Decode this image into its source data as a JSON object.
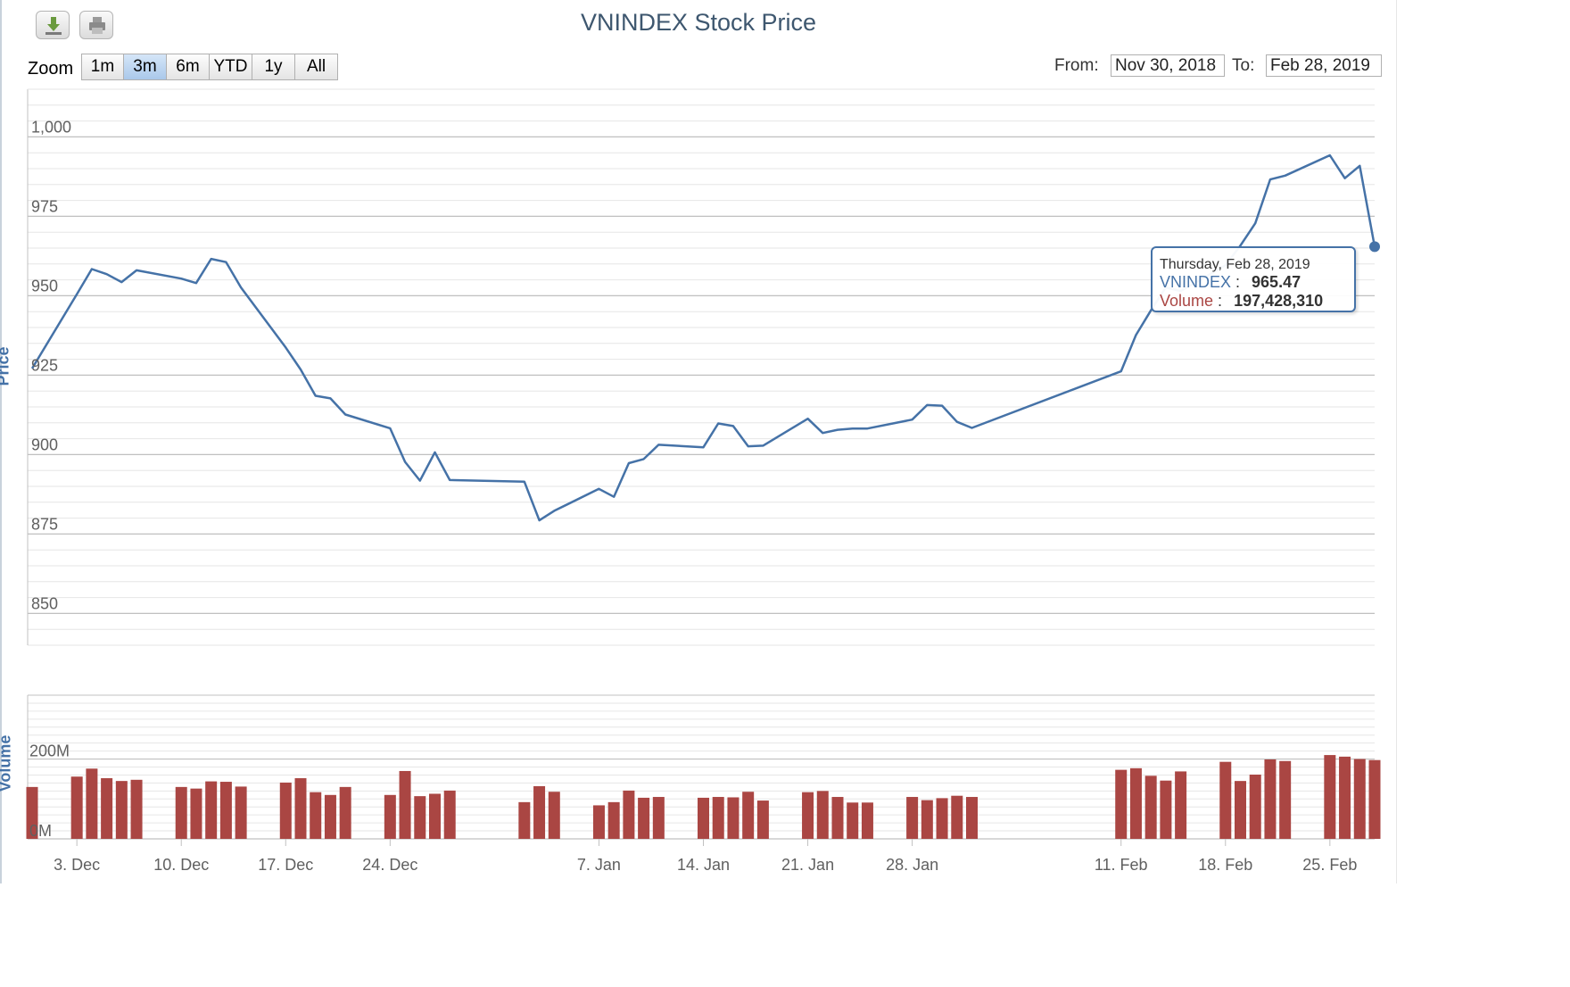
{
  "title": "VNINDEX Stock Price",
  "toolbar": {
    "download_icon": "download-icon",
    "print_icon": "print-icon"
  },
  "zoom": {
    "label": "Zoom",
    "buttons": [
      "1m",
      "3m",
      "6m",
      "YTD",
      "1y",
      "All"
    ],
    "selected": "3m"
  },
  "range": {
    "from_label": "From:",
    "from_value": "Nov 30, 2018",
    "to_label": "To:",
    "to_value": "Feb 28, 2019"
  },
  "colors": {
    "price_line": "#4572a7",
    "volume_bar": "#aa4643",
    "title": "#3e576f",
    "grid": "#c0c0c0"
  },
  "tooltip": {
    "date": "Thursday, Feb 28, 2019",
    "series1_name": "VNINDEX",
    "series1_value": "965.47",
    "series2_name": "Volume",
    "series2_value": "197,428,310"
  },
  "chart_data": [
    {
      "type": "line",
      "title": "VNINDEX Stock Price",
      "ylabel": "Price",
      "ylim": [
        840,
        1015
      ],
      "yticks": [
        850,
        875,
        900,
        925,
        950,
        975,
        1000
      ],
      "ytick_labels": [
        "850",
        "875",
        "900",
        "925",
        "950",
        "975",
        "1,000"
      ],
      "xlim": [
        "2018-11-30",
        "2019-02-28"
      ],
      "xticks": [
        "2018-12-03",
        "2018-12-10",
        "2018-12-17",
        "2018-12-24",
        "2019-01-07",
        "2019-01-14",
        "2019-01-21",
        "2019-01-28",
        "2019-02-11",
        "2019-02-18",
        "2019-02-25"
      ],
      "xtick_labels": [
        "3. Dec",
        "10. Dec",
        "17. Dec",
        "24. Dec",
        "7. Jan",
        "14. Jan",
        "21. Jan",
        "28. Jan",
        "11. Feb",
        "18. Feb",
        "25. Feb"
      ],
      "grid": true,
      "series": [
        {
          "name": "VNINDEX",
          "x": [
            "2018-11-30",
            "2018-12-03",
            "2018-12-04",
            "2018-12-05",
            "2018-12-06",
            "2018-12-07",
            "2018-12-10",
            "2018-12-11",
            "2018-12-12",
            "2018-12-13",
            "2018-12-14",
            "2018-12-17",
            "2018-12-18",
            "2018-12-19",
            "2018-12-20",
            "2018-12-21",
            "2018-12-24",
            "2018-12-25",
            "2018-12-26",
            "2018-12-27",
            "2018-12-28",
            "2019-01-02",
            "2019-01-03",
            "2019-01-04",
            "2019-01-07",
            "2019-01-08",
            "2019-01-09",
            "2019-01-10",
            "2019-01-11",
            "2019-01-14",
            "2019-01-15",
            "2019-01-16",
            "2019-01-17",
            "2019-01-18",
            "2019-01-21",
            "2019-01-22",
            "2019-01-23",
            "2019-01-24",
            "2019-01-25",
            "2019-01-28",
            "2019-01-29",
            "2019-01-30",
            "2019-01-31",
            "2019-02-01",
            "2019-02-11",
            "2019-02-12",
            "2019-02-13",
            "2019-02-14",
            "2019-02-15",
            "2019-02-18",
            "2019-02-19",
            "2019-02-20",
            "2019-02-21",
            "2019-02-22",
            "2019-02-25",
            "2019-02-26",
            "2019-02-27",
            "2019-02-28"
          ],
          "values": [
            927.1,
            950.5,
            958.4,
            956.8,
            954.3,
            958.0,
            955.4,
            954.0,
            961.6,
            960.6,
            952.6,
            933.7,
            926.8,
            918.5,
            917.7,
            912.6,
            908.3,
            897.7,
            891.8,
            900.7,
            892.0,
            891.5,
            879.3,
            882.3,
            889.2,
            886.7,
            897.3,
            898.6,
            903.1,
            902.3,
            909.8,
            909.0,
            902.6,
            902.8,
            911.3,
            906.8,
            907.8,
            908.2,
            908.2,
            911.0,
            915.6,
            915.4,
            910.3,
            908.4,
            926.2,
            937.6,
            945.4,
            952.6,
            951.5,
            959.6,
            965.8,
            972.8,
            986.6,
            987.8,
            994.2,
            987.0,
            990.9,
            965.47
          ]
        }
      ]
    },
    {
      "type": "bar",
      "ylabel": "Volume",
      "ylim": [
        0,
        360000000
      ],
      "yticks": [
        0,
        200000000
      ],
      "ytick_labels": [
        "0M",
        "200M"
      ],
      "series": [
        {
          "name": "Volume",
          "x": [
            "2018-11-30",
            "2018-12-03",
            "2018-12-04",
            "2018-12-05",
            "2018-12-06",
            "2018-12-07",
            "2018-12-10",
            "2018-12-11",
            "2018-12-12",
            "2018-12-13",
            "2018-12-14",
            "2018-12-17",
            "2018-12-18",
            "2018-12-19",
            "2018-12-20",
            "2018-12-21",
            "2018-12-24",
            "2018-12-25",
            "2018-12-26",
            "2018-12-27",
            "2018-12-28",
            "2019-01-02",
            "2019-01-03",
            "2019-01-04",
            "2019-01-07",
            "2019-01-08",
            "2019-01-09",
            "2019-01-10",
            "2019-01-11",
            "2019-01-14",
            "2019-01-15",
            "2019-01-16",
            "2019-01-17",
            "2019-01-18",
            "2019-01-21",
            "2019-01-22",
            "2019-01-23",
            "2019-01-24",
            "2019-01-25",
            "2019-01-28",
            "2019-01-29",
            "2019-01-30",
            "2019-01-31",
            "2019-02-01",
            "2019-02-11",
            "2019-02-12",
            "2019-02-13",
            "2019-02-14",
            "2019-02-15",
            "2019-02-18",
            "2019-02-19",
            "2019-02-20",
            "2019-02-21",
            "2019-02-22",
            "2019-02-25",
            "2019-02-26",
            "2019-02-27",
            "2019-02-28"
          ],
          "values": [
            130000000,
            156000000,
            176000000,
            152000000,
            145000000,
            148000000,
            130000000,
            126000000,
            144000000,
            143000000,
            131000000,
            141000000,
            152000000,
            117000000,
            110000000,
            130000000,
            110000000,
            170000000,
            107000000,
            113000000,
            121000000,
            92000000,
            132000000,
            118000000,
            84000000,
            92000000,
            121000000,
            103000000,
            105000000,
            103000000,
            105000000,
            104000000,
            118000000,
            96000000,
            117000000,
            120000000,
            105000000,
            91000000,
            91000000,
            105000000,
            97000000,
            102000000,
            108000000,
            105000000,
            173000000,
            177000000,
            158000000,
            146000000,
            169000000,
            193000000,
            145000000,
            161000000,
            199000000,
            195000000,
            210000000,
            206000000,
            200000000,
            197428310
          ]
        }
      ]
    }
  ]
}
